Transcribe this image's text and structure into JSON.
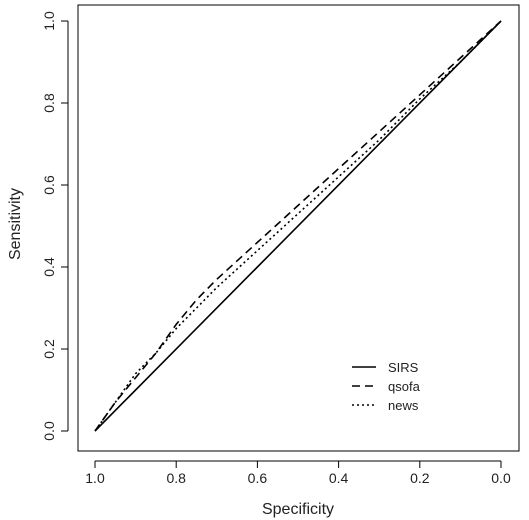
{
  "chart_data": {
    "type": "line",
    "xlabel": "Specificity",
    "ylabel": "Sensitivity",
    "xlim": [
      1.0,
      0.0
    ],
    "ylim": [
      0.0,
      1.0
    ],
    "x_ticks": [
      "1.0",
      "0.8",
      "0.6",
      "0.4",
      "0.2",
      "0.0"
    ],
    "y_ticks": [
      "0.0",
      "0.2",
      "0.4",
      "0.6",
      "0.8",
      "1.0"
    ],
    "x_axis_reversed": true,
    "grid": false,
    "reference_line": {
      "from": [
        1.0,
        0.0
      ],
      "to": [
        0.0,
        1.0
      ],
      "color": "#aaaaaa"
    },
    "legend": {
      "position": "bottom-right",
      "entries": [
        {
          "label": "SIRS",
          "style": "solid"
        },
        {
          "label": "qsofa",
          "style": "dashed"
        },
        {
          "label": "news",
          "style": "dotted"
        }
      ]
    },
    "series": [
      {
        "name": "SIRS",
        "style": "solid",
        "specificity": [
          1.0,
          0.0
        ],
        "sensitivity": [
          0.0,
          1.0
        ]
      },
      {
        "name": "qsofa",
        "style": "dashed",
        "specificity": [
          1.0,
          0.95,
          0.9,
          0.85,
          0.8,
          0.75,
          0.7,
          0.6,
          0.5,
          0.4,
          0.3,
          0.2,
          0.1,
          0.0
        ],
        "sensitivity": [
          0.0,
          0.07,
          0.13,
          0.19,
          0.26,
          0.32,
          0.37,
          0.46,
          0.55,
          0.64,
          0.73,
          0.82,
          0.91,
          1.0
        ]
      },
      {
        "name": "news",
        "style": "dotted",
        "specificity": [
          1.0,
          0.95,
          0.9,
          0.85,
          0.8,
          0.75,
          0.7,
          0.6,
          0.5,
          0.4,
          0.3,
          0.2,
          0.1,
          0.0
        ],
        "sensitivity": [
          0.0,
          0.07,
          0.14,
          0.19,
          0.25,
          0.3,
          0.35,
          0.44,
          0.53,
          0.62,
          0.71,
          0.81,
          0.9,
          1.0
        ]
      }
    ]
  }
}
